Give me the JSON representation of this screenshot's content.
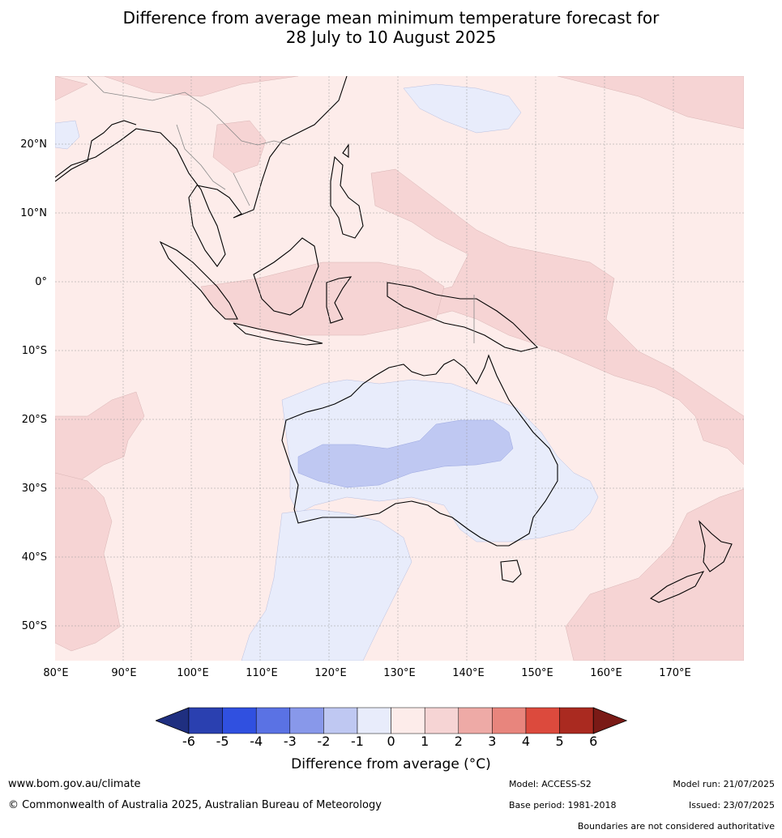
{
  "title_line1": "Difference from average mean minimum temperature forecast for",
  "title_line2": "28 July to 10 August 2025",
  "lat_labels": [
    "20°N",
    "10°N",
    "0°",
    "10°S",
    "20°S",
    "30°S",
    "40°S",
    "50°S"
  ],
  "lon_labels": [
    "80°E",
    "90°E",
    "100°E",
    "110°E",
    "120°E",
    "130°E",
    "140°E",
    "150°E",
    "160°E",
    "170°E"
  ],
  "colorbar": {
    "ticks": [
      "-6",
      "-5",
      "-4",
      "-3",
      "-2",
      "-1",
      "0",
      "1",
      "2",
      "3",
      "4",
      "5",
      "6"
    ],
    "colors": [
      "#1f2f80",
      "#2a40b0",
      "#3050e0",
      "#5a72e4",
      "#8898ea",
      "#bfc8f2",
      "#e8ecfb",
      "#fdecea",
      "#f6d4d4",
      "#eeaaa6",
      "#e8857d",
      "#dc4a3d",
      "#aa2a20",
      "#7a1a16"
    ],
    "label": "Difference from average (°C)"
  },
  "footer": {
    "website": "www.bom.gov.au/climate",
    "copyright": "© Commonwealth of Australia 2025, Australian Bureau of Meteorology",
    "model": "Model: ACCESS-S2",
    "base_period": "Base period: 1981-2018",
    "model_run": "Model run: 21/07/2025",
    "issued": "Issued: 23/07/2025",
    "boundaries": "Boundaries are not considered authoritative"
  }
}
